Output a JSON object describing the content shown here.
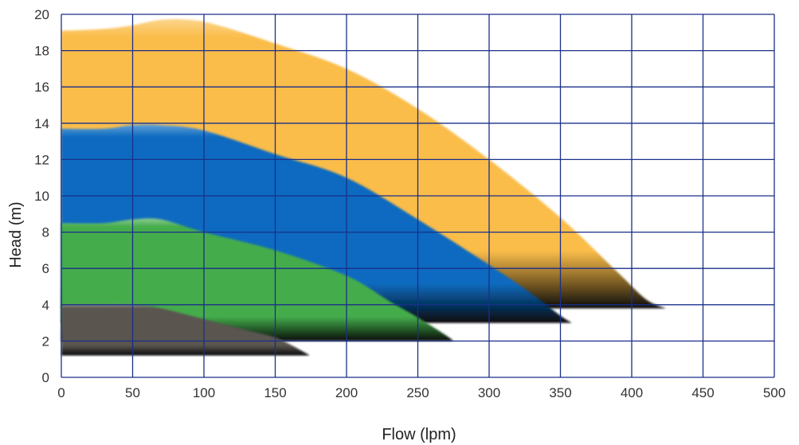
{
  "chart_data": {
    "type": "area",
    "title": "",
    "xlabel": "Flow (lpm)",
    "ylabel": "Head (m)",
    "xlim": [
      0,
      500
    ],
    "ylim": [
      0,
      20
    ],
    "x_ticks": [
      0,
      50,
      100,
      150,
      200,
      250,
      300,
      350,
      400,
      450,
      500
    ],
    "y_ticks": [
      0,
      2,
      4,
      6,
      8,
      10,
      12,
      14,
      16,
      18,
      20
    ],
    "grid": true,
    "legend": "none",
    "series": [
      {
        "color": "#fbbd4a",
        "points": [
          [
            0,
            19.1
          ],
          [
            30,
            19.2
          ],
          [
            50,
            19.4
          ],
          [
            70,
            19.7
          ],
          [
            90,
            19.7
          ],
          [
            110,
            19.4
          ],
          [
            150,
            18.4
          ],
          [
            200,
            17.0
          ],
          [
            250,
            14.8
          ],
          [
            300,
            12.0
          ],
          [
            350,
            8.8
          ],
          [
            390,
            5.8
          ],
          [
            410,
            4.3
          ],
          [
            424,
            3.8
          ]
        ],
        "floor": 3.8
      },
      {
        "color": "#0a6bc0",
        "points": [
          [
            0,
            13.7
          ],
          [
            30,
            13.7
          ],
          [
            50,
            13.9
          ],
          [
            70,
            13.9
          ],
          [
            100,
            13.6
          ],
          [
            150,
            12.3
          ],
          [
            200,
            11.0
          ],
          [
            250,
            8.7
          ],
          [
            300,
            6.2
          ],
          [
            330,
            4.6
          ],
          [
            350,
            3.4
          ],
          [
            358,
            3.0
          ]
        ],
        "floor": 3.0
      },
      {
        "color": "#44ac4b",
        "points": [
          [
            0,
            8.5
          ],
          [
            30,
            8.5
          ],
          [
            50,
            8.7
          ],
          [
            70,
            8.7
          ],
          [
            100,
            8.0
          ],
          [
            150,
            7.0
          ],
          [
            200,
            5.6
          ],
          [
            230,
            4.2
          ],
          [
            250,
            3.3
          ],
          [
            270,
            2.3
          ],
          [
            275,
            2.0
          ]
        ],
        "floor": 2.0
      },
      {
        "color": "#5a5550",
        "points": [
          [
            0,
            4.0
          ],
          [
            30,
            4.0
          ],
          [
            50,
            4.0
          ],
          [
            70,
            3.8
          ],
          [
            100,
            3.2
          ],
          [
            130,
            2.6
          ],
          [
            150,
            2.2
          ],
          [
            170,
            1.4
          ],
          [
            174,
            1.2
          ]
        ],
        "floor": 1.2
      }
    ]
  }
}
